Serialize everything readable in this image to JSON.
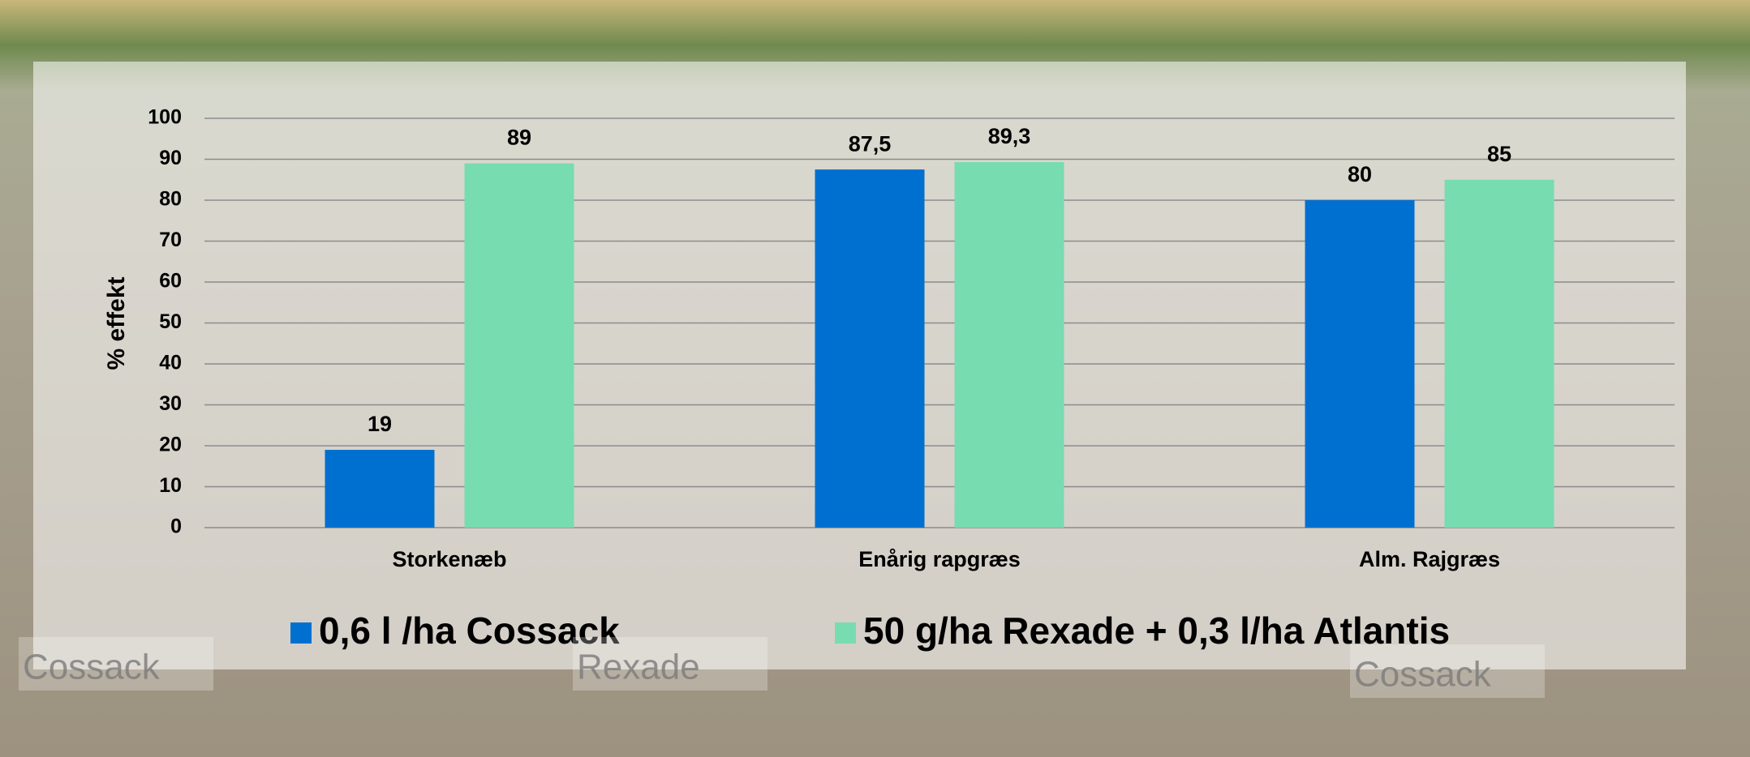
{
  "chart_data": {
    "type": "bar",
    "y_label": "% effekt",
    "categories": [
      "Storkenæb",
      "Enårig rapgræs",
      "Alm. Rajgræs"
    ],
    "series": [
      {
        "name": "0,6 l /ha Cossack",
        "color": "#0070d0",
        "values": [
          19,
          87.5,
          80
        ],
        "value_labels": [
          "19",
          "87,5",
          "80"
        ]
      },
      {
        "name": "50 g/ha Rexade + 0,3 l/ha Atlantis",
        "color": "#78dcb1",
        "values": [
          89,
          89.3,
          85
        ],
        "value_labels": [
          "89",
          "89,3",
          "85"
        ]
      }
    ],
    "ylim": [
      0,
      100
    ],
    "yticks": [
      0,
      10,
      20,
      30,
      40,
      50,
      60,
      70,
      80,
      90,
      100
    ],
    "grid": true,
    "annotations": [
      "Cossack",
      "Rexade",
      "Cossack"
    ]
  }
}
